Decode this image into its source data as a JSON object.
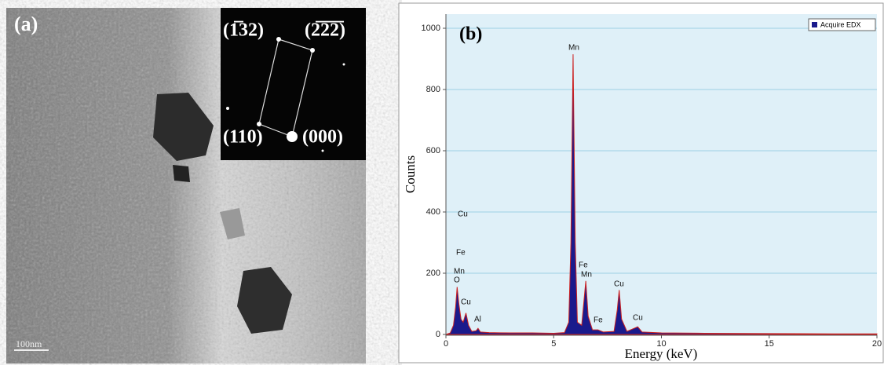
{
  "panel_a": {
    "label": "(a)",
    "spots": [
      "(1̅32)",
      "(2̅2̅2̅)",
      "(110)",
      "(000)"
    ],
    "scale_bar": "100nm"
  },
  "chart_data": {
    "type": "area",
    "panel_label": "(b)",
    "x_label": "Energy (keV)",
    "y_label": "Counts",
    "series": [
      {
        "name": "Acquire EDX",
        "color": "#1a1a8c",
        "edge": "#cc2222",
        "x": [
          0.0,
          0.2,
          0.35,
          0.45,
          0.52,
          0.6,
          0.7,
          0.8,
          0.93,
          1.05,
          1.2,
          1.4,
          1.49,
          1.6,
          2.0,
          3.0,
          4.0,
          5.0,
          5.5,
          5.7,
          5.8,
          5.9,
          6.0,
          6.1,
          6.3,
          6.49,
          6.6,
          6.8,
          7.06,
          7.3,
          7.8,
          7.95,
          8.04,
          8.15,
          8.4,
          8.9,
          9.1,
          10,
          12,
          15,
          18,
          20
        ],
        "values": [
          0,
          5,
          30,
          90,
          155,
          100,
          50,
          40,
          70,
          30,
          10,
          12,
          20,
          8,
          6,
          5,
          5,
          4,
          6,
          40,
          300,
          915,
          300,
          40,
          30,
          175,
          60,
          15,
          15,
          8,
          10,
          80,
          145,
          50,
          10,
          25,
          8,
          5,
          4,
          3,
          2,
          2
        ]
      }
    ],
    "annotations": [
      "Cu",
      "Fe",
      "Mn",
      "O",
      "Cu",
      "Al",
      "Mn",
      "Fe",
      "Mn",
      "Fe",
      "Cu",
      "Cu"
    ],
    "xlim": [
      0,
      20
    ],
    "xticks": [
      0,
      5,
      10,
      15,
      20
    ],
    "ylim": [
      0,
      1000
    ],
    "yticks": [
      0,
      200,
      400,
      600,
      800,
      1000
    ],
    "grid": true,
    "legend": "upper right"
  }
}
